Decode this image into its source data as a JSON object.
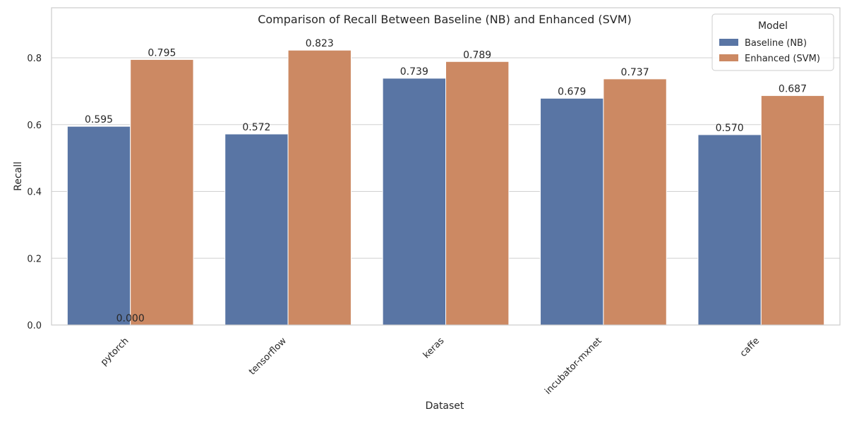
{
  "chart_data": {
    "type": "bar",
    "title": "Comparison of Recall Between Baseline (NB) and Enhanced (SVM)",
    "xlabel": "Dataset",
    "ylabel": "Recall",
    "categories": [
      "pytorch",
      "tensorflow",
      "keras",
      "incubator-mxnet",
      "caffe"
    ],
    "series": [
      {
        "name": "Baseline (NB)",
        "color": "#5975a4",
        "values": [
          0.595,
          0.572,
          0.739,
          0.679,
          0.57
        ],
        "labels": [
          "0.595",
          "0.572",
          "0.739",
          "0.679",
          "0.570"
        ]
      },
      {
        "name": "Enhanced (SVM)",
        "color": "#cc8963",
        "values": [
          0.795,
          0.823,
          0.789,
          0.737,
          0.687
        ],
        "labels": [
          "0.795",
          "0.823",
          "0.789",
          "0.737",
          "0.687"
        ]
      }
    ],
    "extra_annotation": {
      "text": "0.000",
      "category_index": 0,
      "value": 0.0
    },
    "ylim": [
      0,
      0.95
    ],
    "yticks": [
      0.0,
      0.2,
      0.4,
      0.6,
      0.8
    ],
    "ytick_labels": [
      "0.0",
      "0.2",
      "0.4",
      "0.6",
      "0.8"
    ],
    "grid": "horizontal",
    "legend": {
      "title": "Model",
      "placement": "top-right"
    },
    "xtick_rotation_deg": 45
  }
}
